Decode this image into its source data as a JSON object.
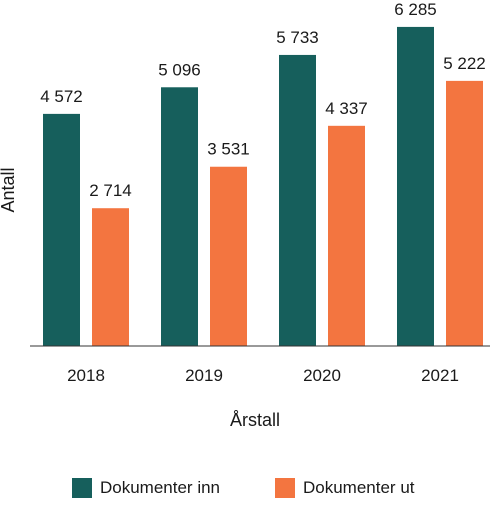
{
  "chart_data": {
    "type": "bar",
    "categories": [
      "2018",
      "2019",
      "2020",
      "2021"
    ],
    "series": [
      {
        "name": "Dokumenter inn",
        "values": [
          4572,
          5096,
          5733,
          6285
        ],
        "labels": [
          "4 572",
          "5 096",
          "5 733",
          "6 285"
        ],
        "color": "#165f5c"
      },
      {
        "name": "Dokumenter ut",
        "values": [
          2714,
          3531,
          4337,
          5222
        ],
        "labels": [
          "2 714",
          "3 531",
          "4 337",
          "5 222"
        ],
        "color": "#f37540"
      }
    ],
    "xlabel": "Årstall",
    "ylabel": "Antall",
    "ylim": [
      0,
      6500
    ],
    "grid": false,
    "legend_position": "bottom"
  }
}
